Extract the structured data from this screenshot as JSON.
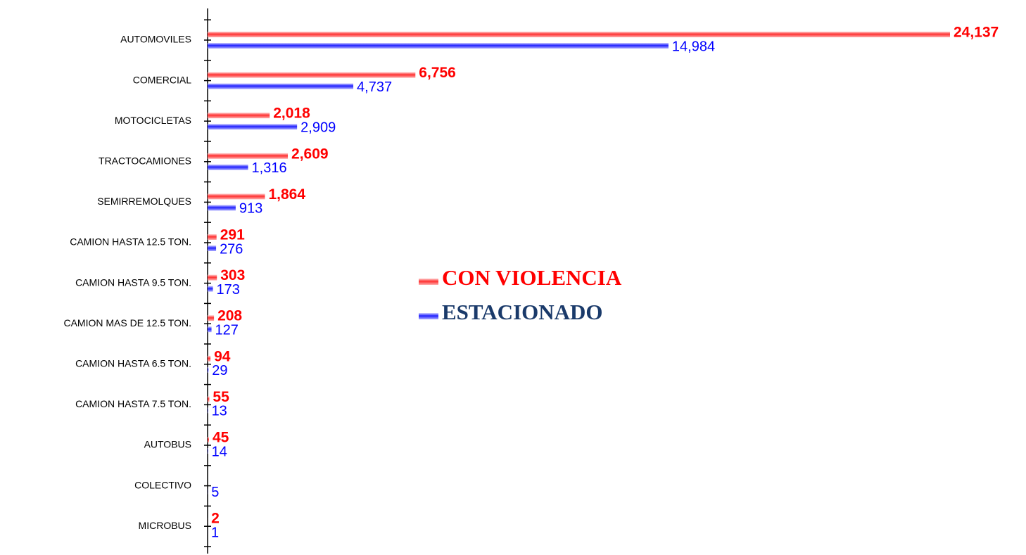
{
  "chart_data": {
    "type": "hbar",
    "categories": [
      "AUTOMOVILES",
      "COMERCIAL",
      "MOTOCICLETAS",
      "TRACTOCAMIONES",
      "SEMIRREMOLQUES",
      "CAMION HASTA 12.5 TON.",
      "CAMION HASTA 9.5 TON.",
      "CAMION MAS DE 12.5 TON.",
      "CAMION HASTA 6.5 TON.",
      "CAMION HASTA 7.5 TON.",
      "AUTOBUS",
      "COLECTIVO",
      "MICROBUS"
    ],
    "series": [
      {
        "name": "CON VIOLENCIA",
        "color": "#ff0000",
        "values": [
          24137,
          6756,
          2018,
          2609,
          1864,
          291,
          303,
          208,
          94,
          55,
          45,
          null,
          2
        ],
        "value_labels": [
          "24,137",
          "6,756",
          "2,018",
          "2,609",
          "1,864",
          "291",
          "303",
          "208",
          "94",
          "55",
          "45",
          null,
          "2"
        ]
      },
      {
        "name": "ESTACIONADO",
        "color": "#0000ff",
        "values": [
          14984,
          4737,
          2909,
          1316,
          913,
          276,
          173,
          127,
          29,
          13,
          14,
          5,
          1
        ],
        "value_labels": [
          "14,984",
          "4,737",
          "2,909",
          "1,316",
          "913",
          "276",
          "173",
          "127",
          "29",
          "13",
          "14",
          "5",
          "1"
        ]
      }
    ],
    "legend": "center"
  }
}
